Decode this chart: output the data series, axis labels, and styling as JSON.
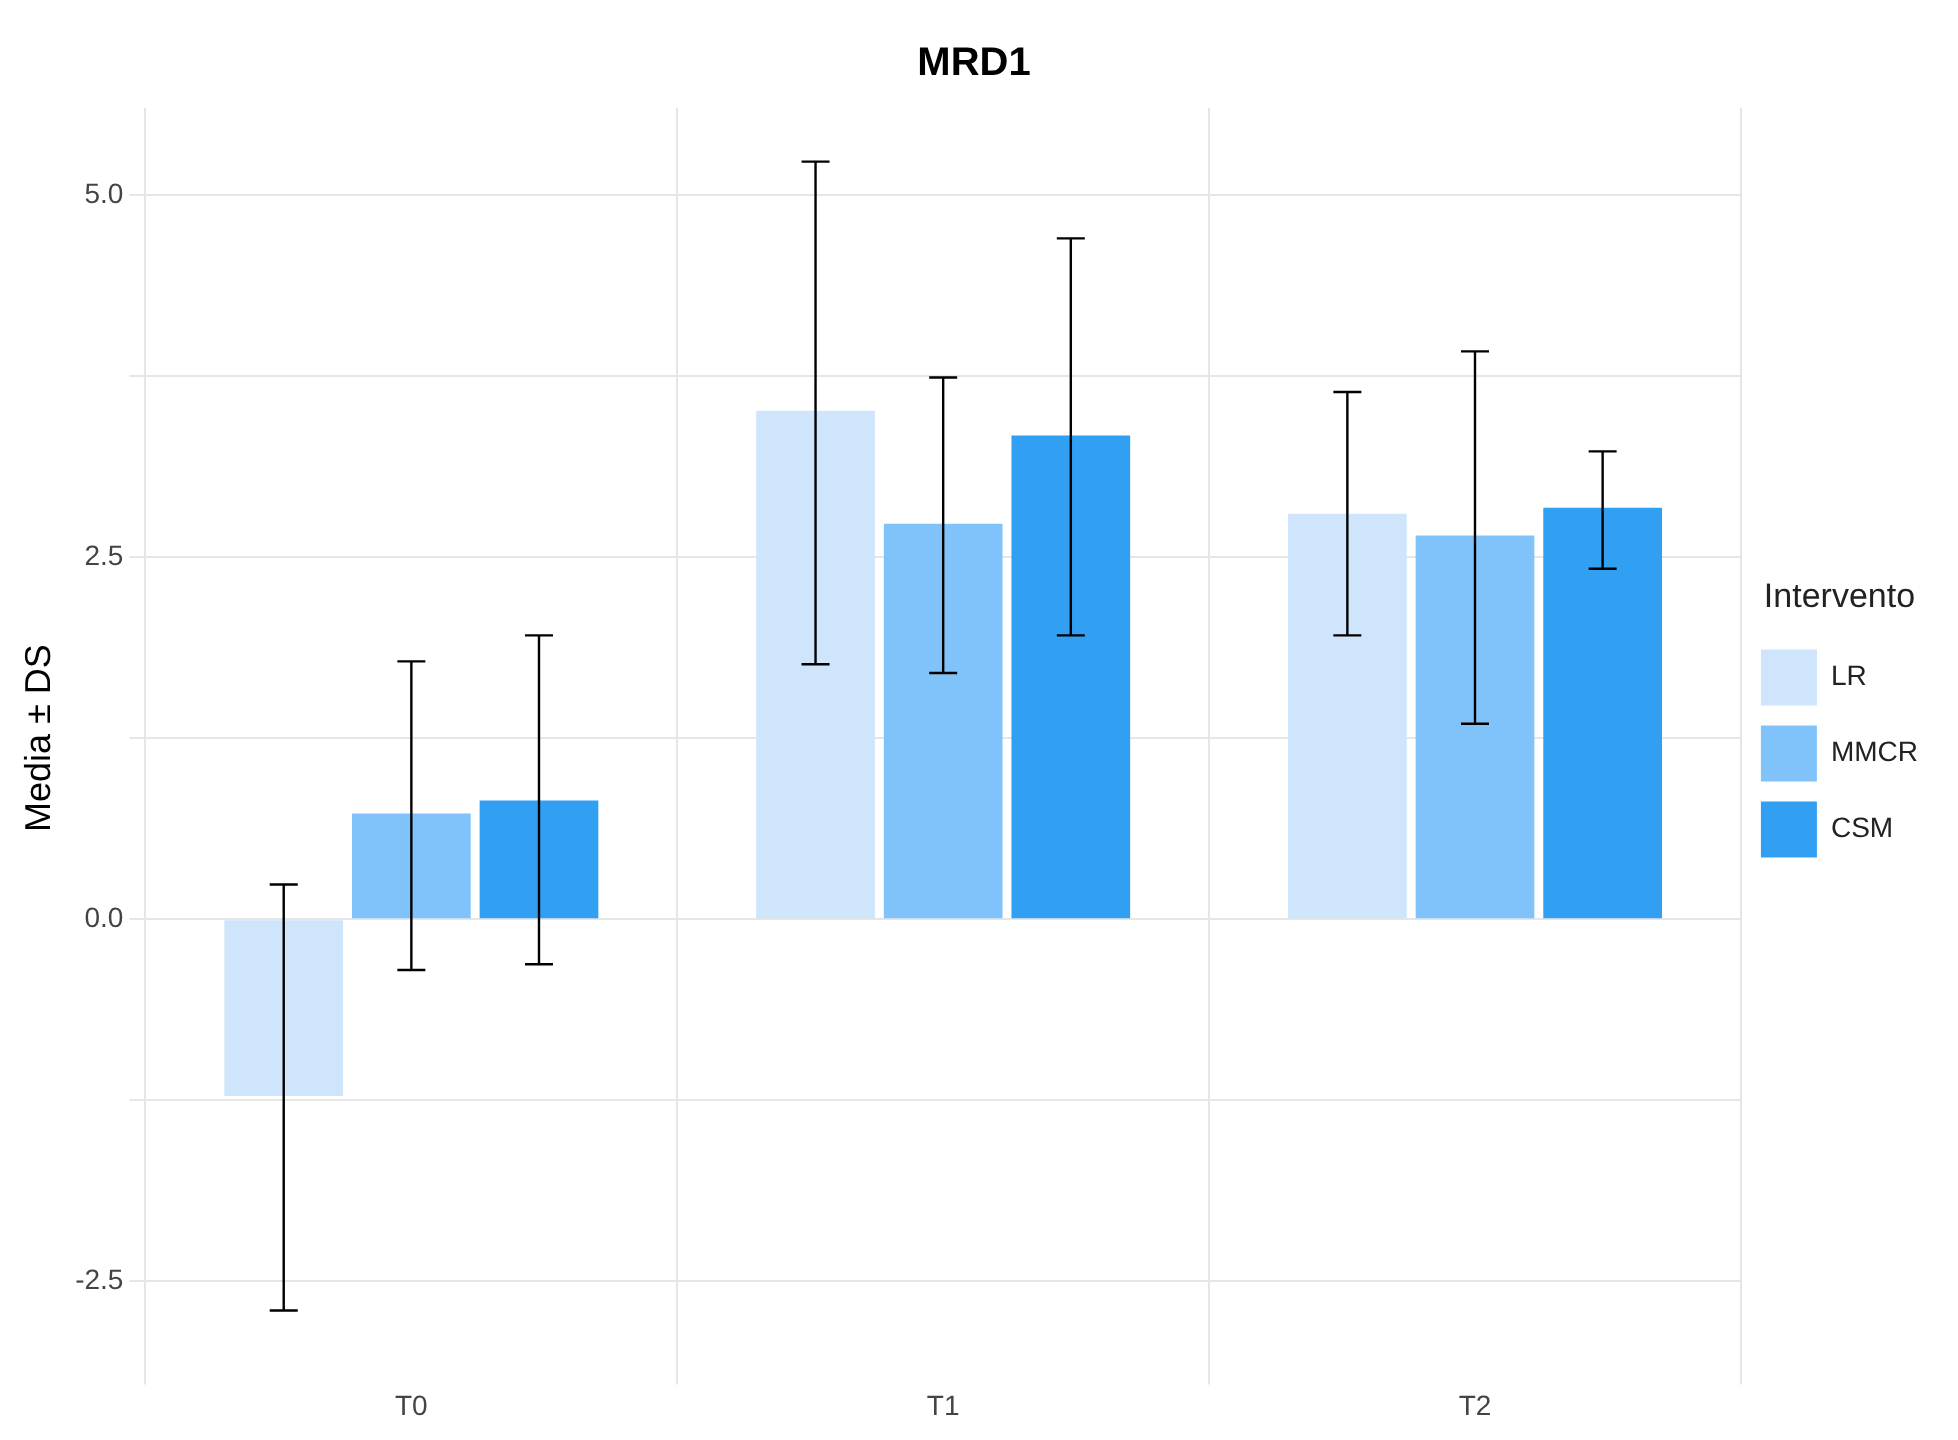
{
  "chart_data": {
    "type": "bar",
    "title": "MRD1",
    "ylabel": "Media ± DS",
    "legend_title": "Intervento",
    "categories": [
      "T0",
      "T1",
      "T2"
    ],
    "series": [
      {
        "name": "LR",
        "color": "#cfe5fb",
        "values": [
          -1.22,
          3.51,
          2.8
        ],
        "errors": [
          [
            -2.7,
            0.24
          ],
          [
            1.76,
            5.23
          ],
          [
            1.96,
            3.64
          ]
        ]
      },
      {
        "name": "MMCR",
        "color": "#80c3fb",
        "values": [
          0.73,
          2.73,
          2.65
        ],
        "errors": [
          [
            -0.35,
            1.78
          ],
          [
            1.7,
            3.74
          ],
          [
            1.35,
            3.92
          ]
        ]
      },
      {
        "name": "CSM",
        "color": "#319ff2",
        "values": [
          0.82,
          3.34,
          2.84
        ],
        "errors": [
          [
            -0.31,
            1.96
          ],
          [
            1.96,
            4.7
          ],
          [
            2.42,
            3.23
          ]
        ]
      }
    ],
    "ylim": [
      -3.1,
      5.6
    ],
    "yticks": [
      {
        "value": -2.5,
        "label": "-2.5"
      },
      {
        "value": -1.25,
        "label": null
      },
      {
        "value": 0,
        "label": "0.0"
      },
      {
        "value": 1.25,
        "label": null
      },
      {
        "value": 2.5,
        "label": "2.5"
      },
      {
        "value": 3.75,
        "label": null
      },
      {
        "value": 5,
        "label": "5.0"
      }
    ],
    "grid": true,
    "legend": "right"
  }
}
